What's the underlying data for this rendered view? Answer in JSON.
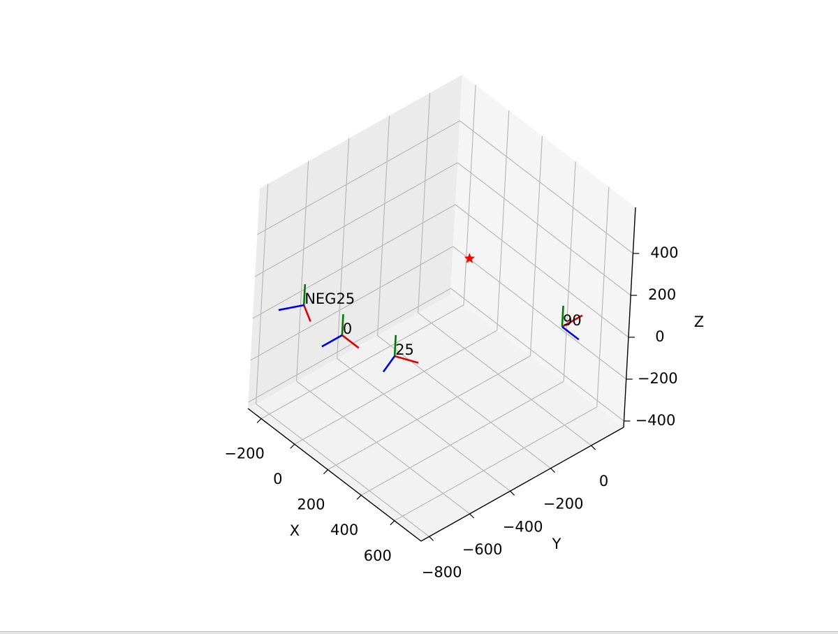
{
  "chart_data": {
    "type": "scatter3d",
    "xlabel": "X",
    "ylabel": "Y",
    "zlabel": "Z",
    "xlim": [
      -280,
      760
    ],
    "ylim": [
      -840,
      160
    ],
    "zlim": [
      -430,
      620
    ],
    "xticks": [
      {
        "value": -200,
        "label": "−200"
      },
      0,
      200,
      400,
      600
    ],
    "yticks": [
      {
        "value": -800,
        "label": "−800"
      },
      {
        "value": -600,
        "label": "−600"
      },
      {
        "value": -400,
        "label": "−400"
      },
      {
        "value": -200,
        "label": "−200"
      },
      0
    ],
    "zticks": [
      {
        "value": -400,
        "label": "−400"
      },
      {
        "value": -200,
        "label": "−200"
      },
      0,
      200,
      400
    ],
    "grid": true,
    "axis_length": 100,
    "axis_colors": [
      "#e00000",
      "#007a00",
      "#0000ee"
    ],
    "target": {
      "x": 0,
      "y": 0,
      "z": 0,
      "color": "#ff0000"
    },
    "frames": [
      {
        "label": "NEG25",
        "x": -210,
        "y": -645,
        "z": 0,
        "yaw": -25
      },
      {
        "label": "0",
        "x": 23,
        "y": -648,
        "z": 0,
        "yaw": 0
      },
      {
        "label": "25",
        "x": 251,
        "y": -576,
        "z": 0,
        "yaw": 25
      },
      {
        "label": "90",
        "x": 544,
        "y": 10,
        "z": 0,
        "yaw": 90
      }
    ]
  }
}
